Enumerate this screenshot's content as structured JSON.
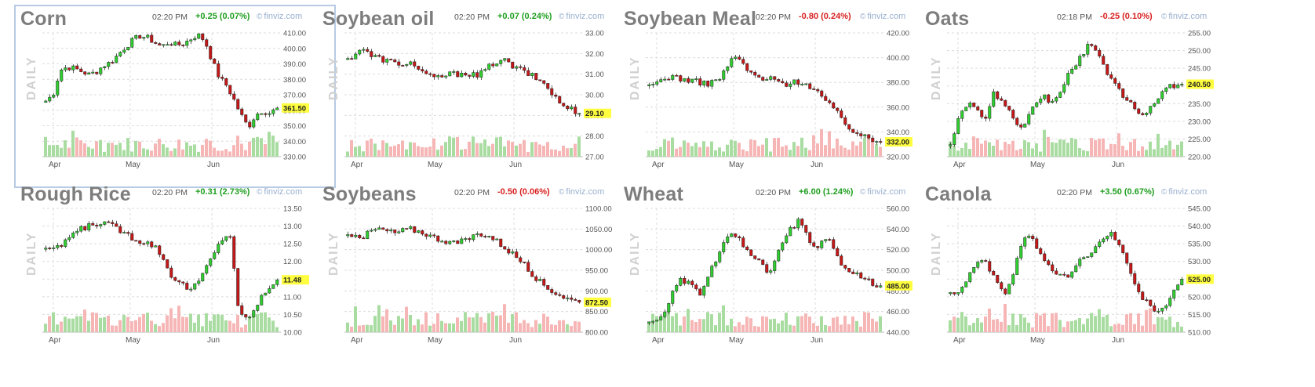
{
  "panels": [
    {
      "id": "corn",
      "title": "Corn",
      "time": "02:20 PM",
      "change": "+0.25 (0.07%)",
      "direction": "up",
      "source": "finviz.com",
      "selected": true,
      "y_axis_label": "DAILY",
      "chart_data": {
        "type": "candlestick",
        "x_ticks": [
          "Apr",
          "May",
          "Jun"
        ],
        "y_ticks": [
          "410.00",
          "400.00",
          "390.00",
          "380.00",
          "370.00",
          "360.00",
          "350.00",
          "340.00",
          "330.00"
        ],
        "ylim": [
          330,
          410
        ],
        "last_price": "361.50",
        "last_value": 361.5,
        "close_path": [
          366,
          370,
          386,
          388,
          387,
          385,
          383,
          385,
          389,
          391,
          396,
          401,
          405,
          408,
          407,
          404,
          401,
          404,
          402,
          403,
          406,
          409,
          405,
          392,
          381,
          376,
          367,
          357,
          349,
          357,
          360,
          358,
          361.5
        ]
      }
    },
    {
      "id": "soybean-oil",
      "title": "Soybean oil",
      "time": "02:20 PM",
      "change": "+0.07 (0.24%)",
      "direction": "up",
      "source": "finviz.com",
      "selected": false,
      "y_axis_label": "DAILY",
      "chart_data": {
        "type": "candlestick",
        "x_ticks": [
          "Apr",
          "May",
          "Jun"
        ],
        "y_ticks": [
          "33.00",
          "32.00",
          "31.00",
          "30.00",
          "29.00",
          "28.00",
          "27.00"
        ],
        "ylim": [
          27,
          33
        ],
        "last_price": "29.10",
        "last_value": 29.1,
        "close_path": [
          31.7,
          32.0,
          32.3,
          31.9,
          31.8,
          31.7,
          31.6,
          31.4,
          31.6,
          31.5,
          31.2,
          30.9,
          30.8,
          30.9,
          31.0,
          31.0,
          31.1,
          31.0,
          30.9,
          31.2,
          31.5,
          31.7,
          31.6,
          31.3,
          31.2,
          31.0,
          30.8,
          30.6,
          30.2,
          29.7,
          29.4,
          29.3,
          29.1
        ]
      }
    },
    {
      "id": "soybean-meal",
      "title": "Soybean Meal",
      "time": "02:20 PM",
      "change": "-0.80 (0.24%)",
      "direction": "down",
      "source": "finviz.com",
      "selected": false,
      "y_axis_label": "DAILY",
      "chart_data": {
        "type": "candlestick",
        "x_ticks": [
          "Apr",
          "May",
          "Jun"
        ],
        "y_ticks": [
          "420.00",
          "400.00",
          "380.00",
          "360.00",
          "340.00",
          "320.00"
        ],
        "ylim": [
          320,
          420
        ],
        "last_price": "332.00",
        "last_value": 332.0,
        "close_path": [
          376,
          380,
          383,
          385,
          384,
          382,
          381,
          380,
          379,
          381,
          385,
          395,
          401,
          395,
          387,
          384,
          382,
          383,
          380,
          379,
          380,
          381,
          378,
          374,
          368,
          361,
          355,
          348,
          342,
          338,
          335,
          333,
          332
        ]
      }
    },
    {
      "id": "oats",
      "title": "Oats",
      "time": "02:18 PM",
      "change": "-0.25 (0.10%)",
      "direction": "down",
      "source": "finviz.com",
      "selected": false,
      "y_axis_label": "DAILY",
      "chart_data": {
        "type": "candlestick",
        "x_ticks": [
          "Apr",
          "May",
          "Jun"
        ],
        "y_ticks": [
          "255.00",
          "250.00",
          "245.00",
          "240.00",
          "235.00",
          "230.00",
          "225.00",
          "220.00"
        ],
        "ylim": [
          220,
          255
        ],
        "last_price": "240.50",
        "last_value": 240.5,
        "close_path": [
          224,
          230,
          234,
          236,
          232,
          231,
          238,
          236,
          233,
          229,
          227,
          232,
          236,
          237,
          235,
          238,
          242,
          245,
          248,
          252,
          250,
          246,
          243,
          240,
          237,
          235,
          232,
          231,
          235,
          238,
          240,
          239,
          240.5
        ]
      }
    },
    {
      "id": "rough-rice",
      "title": "Rough Rice",
      "time": "02:20 PM",
      "change": "+0.31 (2.73%)",
      "direction": "up",
      "source": "finviz.com",
      "selected": false,
      "y_axis_label": "DAILY",
      "chart_data": {
        "type": "candlestick",
        "x_ticks": [
          "Apr",
          "May",
          "Jun"
        ],
        "y_ticks": [
          "13.50",
          "13.00",
          "12.50",
          "12.00",
          "11.50",
          "11.00",
          "10.50",
          "10.00"
        ],
        "ylim": [
          10,
          13.5
        ],
        "last_price": "11.48",
        "last_value": 11.48,
        "close_path": [
          12.4,
          12.3,
          12.45,
          12.7,
          12.85,
          12.95,
          13.05,
          13.1,
          13.05,
          12.95,
          12.85,
          12.7,
          12.6,
          12.55,
          12.45,
          12.2,
          11.7,
          11.45,
          11.3,
          11.2,
          11.5,
          11.9,
          12.3,
          12.7,
          12.75,
          10.5,
          10.4,
          10.6,
          11.0,
          11.3,
          11.48
        ]
      }
    },
    {
      "id": "soybeans",
      "title": "Soybeans",
      "time": "02:20 PM",
      "change": "-0.50 (0.06%)",
      "direction": "down",
      "source": "finviz.com",
      "selected": false,
      "y_axis_label": "DAILY",
      "chart_data": {
        "type": "candlestick",
        "x_ticks": [
          "Apr",
          "May",
          "Jun"
        ],
        "y_ticks": [
          "1100.00",
          "1050.00",
          "1000.00",
          "950.00",
          "900.00",
          "850.00",
          "800.00"
        ],
        "ylim": [
          800,
          1100
        ],
        "last_price": "872.50",
        "last_value": 872.5,
        "close_path": [
          1035,
          1040,
          1030,
          1045,
          1050,
          1045,
          1040,
          1045,
          1050,
          1045,
          1040,
          1030,
          1025,
          1020,
          1015,
          1020,
          1030,
          1040,
          1035,
          1025,
          1010,
          995,
          980,
          960,
          940,
          920,
          905,
          895,
          885,
          878,
          872.5
        ]
      }
    },
    {
      "id": "wheat",
      "title": "Wheat",
      "time": "02:20 PM",
      "change": "+6.00 (1.24%)",
      "direction": "up",
      "source": "finviz.com",
      "selected": false,
      "y_axis_label": "DAILY",
      "chart_data": {
        "type": "candlestick",
        "x_ticks": [
          "Apr",
          "May",
          "Jun"
        ],
        "y_ticks": [
          "560.00",
          "540.00",
          "520.00",
          "500.00",
          "480.00",
          "460.00",
          "440.00"
        ],
        "ylim": [
          440,
          560
        ],
        "last_price": "485.00",
        "last_value": 485.0,
        "close_path": [
          448,
          452,
          460,
          475,
          490,
          488,
          482,
          478,
          495,
          510,
          528,
          535,
          530,
          518,
          512,
          505,
          498,
          512,
          528,
          540,
          548,
          535,
          520,
          525,
          530,
          515,
          505,
          500,
          495,
          490,
          488,
          485
        ]
      }
    },
    {
      "id": "canola",
      "title": "Canola",
      "time": "02:20 PM",
      "change": "+3.50 (0.67%)",
      "direction": "up",
      "source": "finviz.com",
      "selected": false,
      "y_axis_label": "DAILY",
      "chart_data": {
        "type": "candlestick",
        "x_ticks": [
          "Apr",
          "May",
          "Jun"
        ],
        "y_ticks": [
          "545.00",
          "540.00",
          "535.00",
          "530.00",
          "525.00",
          "520.00",
          "515.00",
          "510.00"
        ],
        "ylim": [
          510,
          545
        ],
        "last_price": "525.00",
        "last_value": 525.0,
        "close_path": [
          522,
          521,
          525,
          529,
          531,
          527,
          523,
          521,
          528,
          536,
          538,
          533,
          529,
          527,
          526,
          525,
          531,
          532,
          533,
          536,
          538,
          536,
          530,
          524,
          520,
          517,
          516,
          518,
          522,
          525
        ]
      }
    }
  ]
}
